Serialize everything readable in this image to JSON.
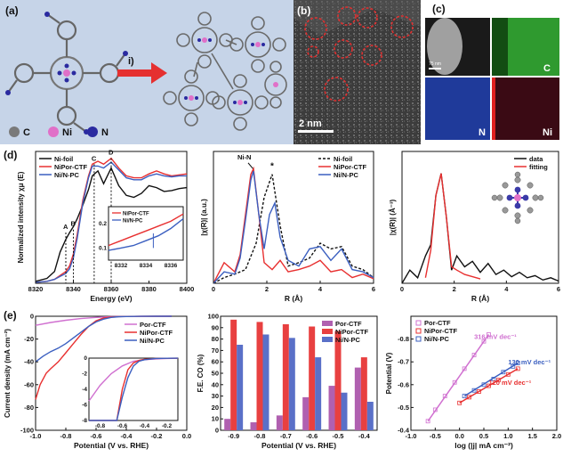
{
  "panel_a": {
    "tag": "(a)",
    "arrow_label": "i)",
    "legend": [
      {
        "symbol": "C",
        "label": "C",
        "color": "#7a7a7a"
      },
      {
        "symbol": "Ni",
        "label": "Ni",
        "color": "#e070c8"
      },
      {
        "symbol": "N",
        "label": "N",
        "color": "#2a2aa0"
      }
    ]
  },
  "panel_b": {
    "tag": "(b)",
    "scale_bar": "2 nm"
  },
  "panel_c": {
    "tag": "(c)",
    "scale_bar": "75 nm",
    "tiles": [
      {
        "label": "",
        "color": "#1a1a1a"
      },
      {
        "label": "C",
        "color": "#2f9a2f"
      },
      {
        "label": "N",
        "color": "#1f3a9a"
      },
      {
        "label": "Ni",
        "color": "#3a0a14"
      }
    ]
  },
  "colors": {
    "ni_foil": "#111111",
    "nipor": "#e83030",
    "ninpc": "#3b5fc0",
    "por": "#d070d0"
  },
  "chart_data": [
    {
      "id": "d1",
      "type": "line",
      "tag": "(d)",
      "xlabel": "Energy (eV)",
      "ylabel": "Normalized intensity χμ (E)",
      "xlim": [
        8320,
        8400
      ],
      "ylim": [
        0,
        1.35
      ],
      "xticks": [
        "8320",
        "8340",
        "8360",
        "8380",
        "8400"
      ],
      "legend_position": "top-left",
      "annotations": [
        "A",
        "B",
        "C",
        "D"
      ],
      "inset": {
        "xticks": [
          "8332",
          "8334",
          "8336"
        ],
        "yticks": [
          "0.1",
          "0.2"
        ],
        "legend": [
          "NiPor-CTF",
          "Ni/N-PC"
        ]
      },
      "series": [
        {
          "name": "Ni-foil",
          "color": "#111111",
          "x": [
            8320,
            8326,
            8330,
            8333,
            8336,
            8338,
            8340,
            8342,
            8345,
            8348,
            8350,
            8353,
            8356,
            8360,
            8364,
            8368,
            8372,
            8376,
            8380,
            8384,
            8388,
            8392,
            8396,
            8400
          ],
          "y": [
            0.02,
            0.05,
            0.12,
            0.32,
            0.45,
            0.52,
            0.58,
            0.66,
            0.8,
            0.96,
            1.1,
            1.15,
            1.02,
            1.18,
            1.0,
            0.9,
            0.88,
            0.92,
            1.0,
            0.98,
            0.94,
            0.95,
            0.97,
            0.98
          ]
        },
        {
          "name": "NiPor-CTF",
          "color": "#e83030",
          "x": [
            8320,
            8326,
            8330,
            8333,
            8336,
            8338,
            8340,
            8342,
            8345,
            8348,
            8350,
            8353,
            8356,
            8360,
            8364,
            8368,
            8372,
            8376,
            8380,
            8384,
            8388,
            8392,
            8396,
            8400
          ],
          "y": [
            0.01,
            0.02,
            0.04,
            0.08,
            0.12,
            0.18,
            0.3,
            0.5,
            0.85,
            1.1,
            1.22,
            1.25,
            1.22,
            1.28,
            1.18,
            1.1,
            1.08,
            1.08,
            1.12,
            1.15,
            1.12,
            1.1,
            1.11,
            1.12
          ]
        },
        {
          "name": "Ni/N-PC",
          "color": "#3b5fc0",
          "x": [
            8320,
            8326,
            8330,
            8333,
            8336,
            8338,
            8340,
            8342,
            8345,
            8348,
            8350,
            8353,
            8356,
            8360,
            8364,
            8368,
            8372,
            8376,
            8380,
            8384,
            8388,
            8392,
            8396,
            8400
          ],
          "y": [
            0.01,
            0.02,
            0.04,
            0.07,
            0.1,
            0.15,
            0.26,
            0.46,
            0.82,
            1.08,
            1.2,
            1.2,
            1.18,
            1.24,
            1.16,
            1.08,
            1.06,
            1.06,
            1.1,
            1.12,
            1.1,
            1.09,
            1.1,
            1.1
          ]
        }
      ]
    },
    {
      "id": "d2",
      "type": "line",
      "xlabel": "R (Å)",
      "ylabel": "|χ(R)| (a.u.)",
      "xlim": [
        0,
        6
      ],
      "xticks": [
        "0",
        "2",
        "4",
        "6"
      ],
      "legend_position": "top-right",
      "annotations": [
        "Ni-N",
        "*"
      ],
      "series": [
        {
          "name": "Ni-foil",
          "color": "#111111",
          "dashed": true,
          "x": [
            0,
            0.4,
            0.8,
            1.2,
            1.6,
            1.9,
            2.2,
            2.5,
            2.8,
            3.2,
            3.6,
            4.0,
            4.4,
            4.8,
            5.2,
            5.6,
            6.0
          ],
          "y": [
            0,
            0.05,
            0.08,
            0.12,
            0.35,
            0.75,
            0.95,
            0.5,
            0.15,
            0.18,
            0.22,
            0.35,
            0.3,
            0.32,
            0.15,
            0.12,
            0.05
          ]
        },
        {
          "name": "NiPor-CTF",
          "color": "#e83030",
          "x": [
            0,
            0.4,
            0.8,
            1.0,
            1.2,
            1.4,
            1.5,
            1.7,
            1.9,
            2.2,
            2.5,
            2.8,
            3.2,
            3.6,
            4.0,
            4.4,
            4.8,
            5.2,
            5.6,
            6.0
          ],
          "y": [
            0,
            0.18,
            0.1,
            0.25,
            0.6,
            0.95,
            1.0,
            0.6,
            0.18,
            0.12,
            0.2,
            0.1,
            0.12,
            0.15,
            0.2,
            0.1,
            0.12,
            0.05,
            0.08,
            0.04
          ]
        },
        {
          "name": "Ni/N-PC",
          "color": "#3b5fc0",
          "x": [
            0,
            0.4,
            0.8,
            1.0,
            1.2,
            1.4,
            1.5,
            1.7,
            1.9,
            2.1,
            2.3,
            2.5,
            2.8,
            3.2,
            3.6,
            4.0,
            4.4,
            4.8,
            5.2,
            5.6,
            6.0
          ],
          "y": [
            0,
            0.1,
            0.08,
            0.22,
            0.55,
            0.9,
            0.98,
            0.6,
            0.3,
            0.6,
            0.7,
            0.4,
            0.2,
            0.15,
            0.3,
            0.32,
            0.2,
            0.3,
            0.12,
            0.1,
            0.05
          ]
        }
      ]
    },
    {
      "id": "d3",
      "type": "line",
      "xlabel": "R (Å)",
      "ylabel": "|χ(R)| (Å⁻³)",
      "xlim": [
        0,
        6
      ],
      "xticks": [
        "0",
        "2",
        "4",
        "6"
      ],
      "legend_position": "top-right",
      "series": [
        {
          "name": "data",
          "color": "#111111",
          "x": [
            0,
            0.3,
            0.6,
            0.9,
            1.1,
            1.3,
            1.5,
            1.7,
            1.9,
            2.1,
            2.4,
            2.7,
            3.0,
            3.3,
            3.6,
            3.9,
            4.2,
            4.5,
            4.8,
            5.1,
            5.4,
            5.7,
            6.0
          ],
          "y": [
            0,
            0.12,
            0.05,
            0.25,
            0.35,
            0.8,
            1.0,
            0.6,
            0.12,
            0.25,
            0.15,
            0.2,
            0.1,
            0.18,
            0.08,
            0.12,
            0.06,
            0.1,
            0.05,
            0.07,
            0.03,
            0.05,
            0.02
          ]
        },
        {
          "name": "fitting",
          "color": "#e83030",
          "x": [
            0.9,
            1.1,
            1.3,
            1.5,
            1.7,
            1.9,
            2.1,
            2.4,
            2.7,
            3.0
          ],
          "y": [
            0.05,
            0.3,
            0.8,
            1.0,
            0.6,
            0.15,
            0.12,
            0.08,
            0.06,
            0.04
          ]
        }
      ]
    },
    {
      "id": "e1",
      "type": "line",
      "tag": "(e)",
      "xlabel": "Potential (V vs. RHE)",
      "ylabel": "Current density (mA cm⁻²)",
      "xlim": [
        -1.0,
        0.0
      ],
      "ylim": [
        -100,
        0
      ],
      "xticks": [
        "-1.0",
        "-0.8",
        "-0.6",
        "-0.4",
        "-0.2",
        "0.0"
      ],
      "yticks": [
        "0",
        "-20",
        "-40",
        "-60",
        "-80",
        "-100"
      ],
      "legend_position": "top-right",
      "inset": {
        "xticks": [
          "-0.8",
          "-0.6",
          "-0.4",
          "-0.2"
        ],
        "yticks": [
          "0",
          "-2",
          "-4",
          "-6",
          "-8"
        ]
      },
      "series": [
        {
          "name": "Por-CTF",
          "color": "#d070d0",
          "x": [
            -1.0,
            -0.9,
            -0.8,
            -0.7,
            -0.6,
            -0.5,
            -0.4,
            -0.3,
            -0.2,
            -0.1
          ],
          "y": [
            -8,
            -5.5,
            -3.5,
            -2,
            -1,
            -0.4,
            -0.2,
            -0.1,
            -0.05,
            -0.02
          ]
        },
        {
          "name": "NiPor-CTF",
          "color": "#e83030",
          "x": [
            -1.0,
            -0.97,
            -0.93,
            -0.9,
            -0.85,
            -0.8,
            -0.75,
            -0.7,
            -0.65,
            -0.6,
            -0.55,
            -0.5,
            -0.45,
            -0.4,
            -0.3,
            -0.2,
            -0.1
          ],
          "y": [
            -73,
            -60,
            -50,
            -46,
            -40,
            -32,
            -24,
            -16,
            -9,
            -4,
            -1.5,
            -0.6,
            -0.3,
            -0.15,
            -0.05,
            -0.02,
            -0.01
          ]
        },
        {
          "name": "Ni/N-PC",
          "color": "#3b5fc0",
          "x": [
            -1.0,
            -0.95,
            -0.9,
            -0.85,
            -0.8,
            -0.75,
            -0.7,
            -0.65,
            -0.6,
            -0.55,
            -0.5,
            -0.45,
            -0.4,
            -0.3,
            -0.2,
            -0.1
          ],
          "y": [
            -40,
            -35,
            -31,
            -28,
            -24,
            -19,
            -14,
            -9,
            -5,
            -2.5,
            -1,
            -0.4,
            -0.2,
            -0.05,
            -0.02,
            -0.01
          ]
        }
      ]
    },
    {
      "id": "e2",
      "type": "bar",
      "xlabel": "Potential (V vs. RHE)",
      "ylabel": "F.E. CO (%)",
      "ylim": [
        0,
        100
      ],
      "categories": [
        "-0.9",
        "-0.8",
        "-0.7",
        "-0.6",
        "-0.5",
        "-0.4"
      ],
      "yticks": [
        "0",
        "10",
        "20",
        "30",
        "40",
        "50",
        "60",
        "70",
        "80",
        "90",
        "100"
      ],
      "legend_position": "top-right",
      "series": [
        {
          "name": "Por-CTF",
          "color": "#b060b0",
          "values": [
            10,
            7,
            13,
            29,
            39,
            55
          ]
        },
        {
          "name": "NiPor-CTF",
          "color": "#e84040",
          "values": [
            97,
            95,
            93,
            91,
            87,
            64
          ]
        },
        {
          "name": "Ni/N-PC",
          "color": "#5a70c8",
          "values": [
            75,
            84,
            81,
            64,
            33,
            25
          ]
        }
      ]
    },
    {
      "id": "e3",
      "type": "scatter",
      "xlabel": "log (|j| mA cm⁻²)",
      "ylabel": "Potential (V)",
      "xlim": [
        -1.0,
        2.0
      ],
      "ylim": [
        -0.4,
        -0.9
      ],
      "xticks": [
        "-1.0",
        "-0.5",
        "0.0",
        "0.5",
        "1.0",
        "1.5",
        "2.0"
      ],
      "yticks": [
        "-0.8",
        "-0.7",
        "-0.6",
        "-0.5",
        "-0.4"
      ],
      "legend_position": "top-left",
      "annotations": [
        "316 mV dec⁻¹",
        "130 mV dec⁻¹",
        "120 mV dec⁻¹"
      ],
      "series": [
        {
          "name": "Por-CTF",
          "color": "#d070d0",
          "x": [
            -0.65,
            -0.5,
            -0.3,
            -0.1,
            0.1,
            0.3,
            0.5,
            0.6
          ],
          "y": [
            -0.44,
            -0.49,
            -0.55,
            -0.61,
            -0.67,
            -0.73,
            -0.79,
            -0.82
          ]
        },
        {
          "name": "NiPor-CTF",
          "color": "#e83030",
          "x": [
            0.0,
            0.2,
            0.4,
            0.6,
            0.8,
            1.0,
            1.2
          ],
          "y": [
            -0.52,
            -0.545,
            -0.57,
            -0.595,
            -0.62,
            -0.645,
            -0.67
          ]
        },
        {
          "name": "Ni/N-PC",
          "color": "#3b5fc0",
          "x": [
            0.1,
            0.3,
            0.5,
            0.7,
            0.9,
            1.1,
            1.2
          ],
          "y": [
            -0.55,
            -0.575,
            -0.6,
            -0.625,
            -0.655,
            -0.68,
            -0.695
          ]
        }
      ]
    }
  ]
}
